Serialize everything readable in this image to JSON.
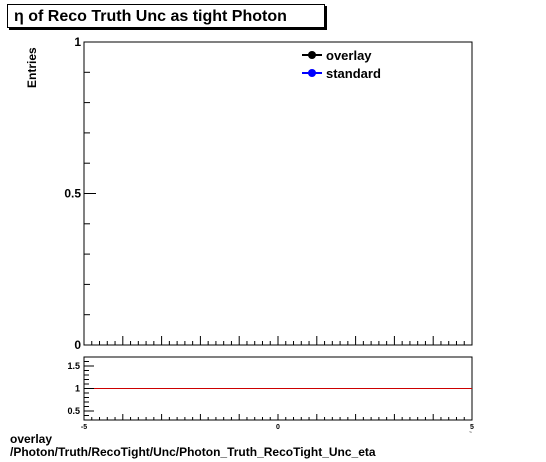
{
  "title_prefix": "η",
  "title_text": " of Reco Truth Unc as tight Photon",
  "footer_line1": "overlay",
  "footer_line2": "/Photon/Truth/RecoTight/Unc/Photon_Truth_RecoTight_Unc_eta",
  "colors": {
    "overlay": "#000000",
    "standard": "#0000ff",
    "ratio_line": "#cc0000"
  },
  "chart_data": [
    {
      "type": "line",
      "title": "η of Reco Truth Unc as tight Photon",
      "ylabel": "Entries",
      "xlim": [
        -5,
        5
      ],
      "ylim": [
        0,
        1
      ],
      "yticks": [
        {
          "v": 0,
          "label": "0"
        },
        {
          "v": 0.5,
          "label": "0.5"
        },
        {
          "v": 1,
          "label": "1"
        }
      ],
      "legend_position": "top-right",
      "series": [
        {
          "name": "overlay",
          "marker": "circle",
          "x": [],
          "y": []
        },
        {
          "name": "standard",
          "marker": "circle",
          "x": [],
          "y": []
        }
      ]
    },
    {
      "type": "line",
      "xlim": [
        -5,
        5
      ],
      "ylim": [
        0.3,
        1.7
      ],
      "xticks": [
        {
          "v": -5,
          "label": "-5"
        },
        {
          "v": 0,
          "label": "0"
        },
        {
          "v": 5,
          "label": "5"
        }
      ],
      "yticks": [
        {
          "v": 0.5,
          "label": "0.5"
        },
        {
          "v": 1,
          "label": "1"
        },
        {
          "v": 1.5,
          "label": "1.5"
        }
      ],
      "reference_line": 1,
      "series": []
    }
  ]
}
